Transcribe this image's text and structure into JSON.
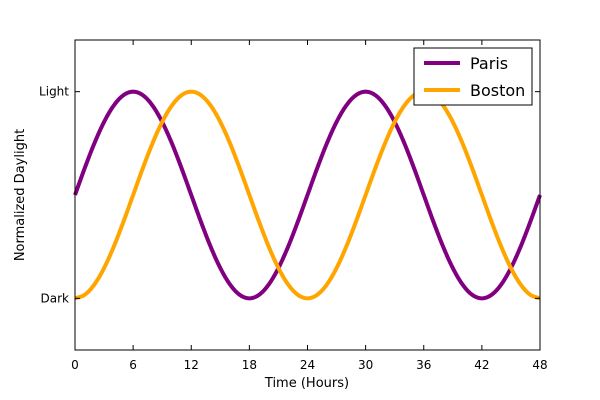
{
  "chart_data": {
    "type": "line",
    "title": "",
    "xlabel": "Time (Hours)",
    "ylabel": "Normalized Daylight",
    "xlim": [
      0,
      48
    ],
    "ylim": [
      -1.5,
      1.5
    ],
    "x_ticks": [
      0,
      6,
      12,
      18,
      24,
      30,
      36,
      42,
      48
    ],
    "y_ticks": [
      {
        "value": 1,
        "label": "Light"
      },
      {
        "value": -1,
        "label": "Dark"
      }
    ],
    "grid": false,
    "legend_position": "top-right",
    "series": [
      {
        "name": "Paris",
        "color": "#800080",
        "x": [
          0,
          1,
          2,
          3,
          4,
          5,
          6,
          7,
          8,
          9,
          10,
          11,
          12,
          13,
          14,
          15,
          16,
          17,
          18,
          19,
          20,
          21,
          22,
          23,
          24,
          25,
          26,
          27,
          28,
          29,
          30,
          31,
          32,
          33,
          34,
          35,
          36,
          37,
          38,
          39,
          40,
          41,
          42,
          43,
          44,
          45,
          46,
          47,
          48
        ],
        "y": [
          0,
          0.259,
          0.5,
          0.707,
          0.866,
          0.966,
          1,
          0.966,
          0.866,
          0.707,
          0.5,
          0.259,
          0,
          -0.259,
          -0.5,
          -0.707,
          -0.866,
          -0.966,
          -1,
          -0.966,
          -0.866,
          -0.707,
          -0.5,
          -0.259,
          0,
          0.259,
          0.5,
          0.707,
          0.866,
          0.966,
          1,
          0.966,
          0.866,
          0.707,
          0.5,
          0.259,
          0,
          -0.259,
          -0.5,
          -0.707,
          -0.866,
          -0.966,
          -1,
          -0.966,
          -0.866,
          -0.707,
          -0.5,
          -0.259,
          0
        ]
      },
      {
        "name": "Boston",
        "color": "#ffa500",
        "x": [
          0,
          1,
          2,
          3,
          4,
          5,
          6,
          7,
          8,
          9,
          10,
          11,
          12,
          13,
          14,
          15,
          16,
          17,
          18,
          19,
          20,
          21,
          22,
          23,
          24,
          25,
          26,
          27,
          28,
          29,
          30,
          31,
          32,
          33,
          34,
          35,
          36,
          37,
          38,
          39,
          40,
          41,
          42,
          43,
          44,
          45,
          46,
          47,
          48
        ],
        "y": [
          -1,
          -0.966,
          -0.866,
          -0.707,
          -0.5,
          -0.259,
          0,
          0.259,
          0.5,
          0.707,
          0.866,
          0.966,
          1,
          0.966,
          0.866,
          0.707,
          0.5,
          0.259,
          0,
          -0.259,
          -0.5,
          -0.707,
          -0.866,
          -0.966,
          -1,
          -0.966,
          -0.866,
          -0.707,
          -0.5,
          -0.259,
          0,
          0.259,
          0.5,
          0.707,
          0.866,
          0.966,
          1,
          0.966,
          0.866,
          0.707,
          0.5,
          0.259,
          0,
          -0.259,
          -0.5,
          -0.707,
          -0.866,
          -0.966,
          -1
        ]
      }
    ]
  }
}
